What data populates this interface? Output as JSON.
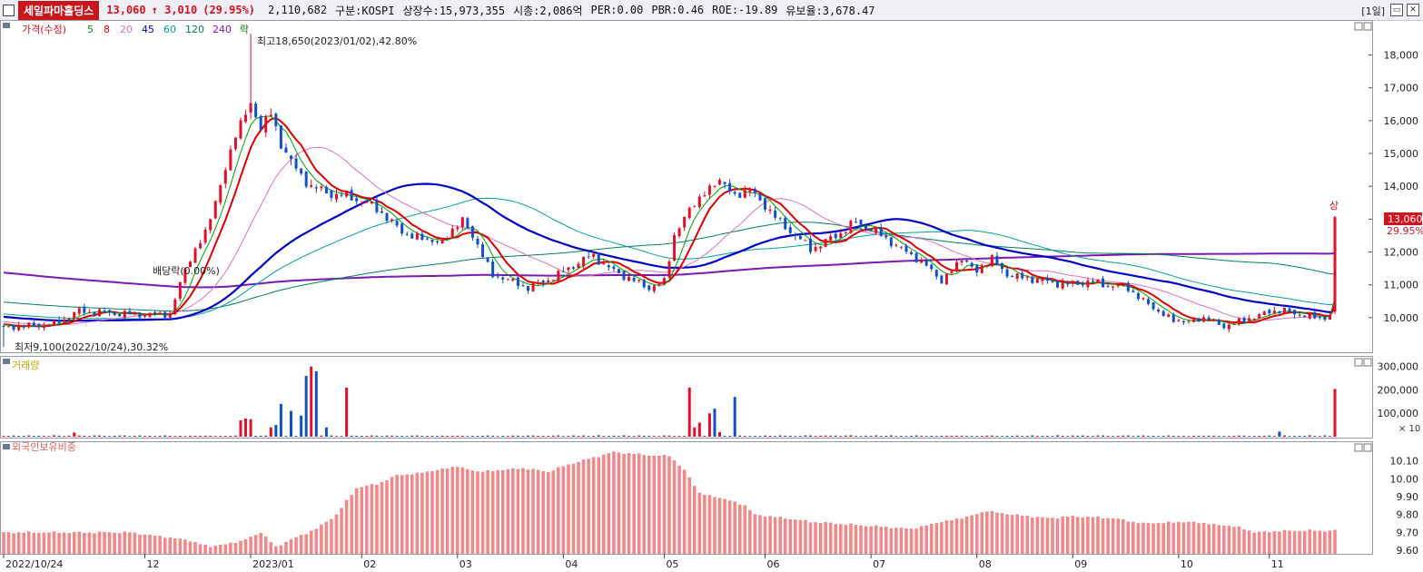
{
  "header": {
    "stock_name": "세일파마홀딩스",
    "price": "13,060",
    "change": "↑ 3,010",
    "change_pct": "(29.95%)",
    "volume": "2,110,682",
    "market": "구분:KOSPI",
    "listed_shares": "상장수:15,973,355",
    "market_cap": "시총:2,086억",
    "per": "PER:0.00",
    "pbr": "PBR:0.46",
    "roe": "ROE:-19.89",
    "float_ratio": "유보율:3,678.47",
    "period": "[1일]",
    "accent_color": "#c8161d"
  },
  "legend": {
    "price": "가격(수정)",
    "ma5": "5",
    "ma8": "8",
    "ma20": "20",
    "ma45": "45",
    "ma60": "60",
    "ma120": "120",
    "ma240": "240",
    "event": "락"
  },
  "annotations": {
    "high": "최고18,650(2023/01/02),42.80%",
    "low": "최저9,100(2022/10/24),30.32%",
    "dividend": "배당락(0.00%)",
    "upper_limit": "상",
    "price_tag": "13,060",
    "pct_tag": "29.95%"
  },
  "volume_panel": {
    "title": "거래량",
    "unit": "× 10"
  },
  "foreign_panel": {
    "title": "외국인보유비중"
  },
  "chart_data": [
    {
      "type": "candlestick",
      "title": "가격(수정)",
      "y_ticks": [
        10000,
        11000,
        12000,
        13000,
        14000,
        15000,
        16000,
        17000,
        18000
      ],
      "y_tick_labels": [
        "10,000",
        "11,000",
        "12,000",
        "13,000",
        "14,000",
        "15,000",
        "16,000",
        "17,000",
        "18,000"
      ],
      "ylim": [
        9000,
        18900
      ],
      "x_ticks": [
        "2022/10/24",
        "12",
        "2023/01",
        "02",
        "03",
        "04",
        "05",
        "06",
        "07",
        "08",
        "09",
        "10",
        "11"
      ],
      "x_tick_days": [
        0,
        28,
        49,
        71,
        90,
        111,
        131,
        151,
        172,
        193,
        212,
        233,
        251
      ],
      "total_days": 265,
      "anchors": [
        [
          0,
          9700
        ],
        [
          10,
          9800
        ],
        [
          15,
          10200
        ],
        [
          25,
          10100
        ],
        [
          33,
          10100
        ],
        [
          36,
          11500
        ],
        [
          40,
          12600
        ],
        [
          43,
          14000
        ],
        [
          46,
          15600
        ],
        [
          49,
          16500
        ],
        [
          51,
          15800
        ],
        [
          53,
          16200
        ],
        [
          55,
          15300
        ],
        [
          58,
          14500
        ],
        [
          61,
          14000
        ],
        [
          64,
          13800
        ],
        [
          68,
          13700
        ],
        [
          72,
          13500
        ],
        [
          75,
          13200
        ],
        [
          79,
          12600
        ],
        [
          83,
          12400
        ],
        [
          87,
          12300
        ],
        [
          91,
          13000
        ],
        [
          94,
          12200
        ],
        [
          97,
          11300
        ],
        [
          101,
          11100
        ],
        [
          104,
          10900
        ],
        [
          107,
          11100
        ],
        [
          110,
          11300
        ],
        [
          113,
          11600
        ],
        [
          117,
          11900
        ],
        [
          120,
          11500
        ],
        [
          124,
          11200
        ],
        [
          128,
          10900
        ],
        [
          131,
          11100
        ],
        [
          133,
          12500
        ],
        [
          136,
          13300
        ],
        [
          139,
          13800
        ],
        [
          142,
          14200
        ],
        [
          145,
          13700
        ],
        [
          148,
          13900
        ],
        [
          151,
          13400
        ],
        [
          154,
          12900
        ],
        [
          157,
          12500
        ],
        [
          160,
          12100
        ],
        [
          163,
          12300
        ],
        [
          166,
          12600
        ],
        [
          169,
          12900
        ],
        [
          172,
          12700
        ],
        [
          175,
          12400
        ],
        [
          179,
          12000
        ],
        [
          183,
          11600
        ],
        [
          186,
          11100
        ],
        [
          190,
          11800
        ],
        [
          193,
          11400
        ],
        [
          196,
          11800
        ],
        [
          199,
          11300
        ],
        [
          203,
          11200
        ],
        [
          207,
          11100
        ],
        [
          211,
          11000
        ],
        [
          215,
          11100
        ],
        [
          219,
          11000
        ],
        [
          223,
          10900
        ],
        [
          226,
          10500
        ],
        [
          229,
          10200
        ],
        [
          232,
          9900
        ],
        [
          236,
          9900
        ],
        [
          239,
          10000
        ],
        [
          242,
          9700
        ],
        [
          245,
          9900
        ],
        [
          248,
          10000
        ],
        [
          251,
          10200
        ],
        [
          254,
          10200
        ],
        [
          257,
          10100
        ],
        [
          260,
          10000
        ],
        [
          263,
          10050
        ],
        [
          264,
          13060
        ]
      ],
      "last_close": 13060,
      "high": 18650,
      "low": 9100,
      "series_colors": {
        "ma5": "#00a000",
        "ma8": "#e00000",
        "ma20": "#e070c0",
        "ma45": "#0000c8",
        "ma60": "#00a0a0",
        "ma120": "#008060",
        "ma240": "#7a1ab0",
        "up": "#e0102a",
        "down": "#1050c8"
      }
    },
    {
      "type": "bar",
      "title": "거래량",
      "y_ticks": [
        100000,
        200000,
        300000
      ],
      "y_tick_labels": [
        "100,000",
        "200,000",
        "300,000"
      ],
      "ylim": [
        0,
        330000
      ],
      "spikes": [
        [
          14,
          18000
        ],
        [
          47,
          70000
        ],
        [
          48,
          78000
        ],
        [
          49,
          75000
        ],
        [
          53,
          40000
        ],
        [
          54,
          50000
        ],
        [
          55,
          140000
        ],
        [
          57,
          110000
        ],
        [
          59,
          90000
        ],
        [
          60,
          260000
        ],
        [
          61,
          300000
        ],
        [
          62,
          280000
        ],
        [
          64,
          40000
        ],
        [
          68,
          210000
        ],
        [
          136,
          210000
        ],
        [
          137,
          40000
        ],
        [
          138,
          60000
        ],
        [
          140,
          100000
        ],
        [
          141,
          120000
        ],
        [
          142,
          20000
        ],
        [
          145,
          170000
        ],
        [
          253,
          22000
        ],
        [
          264,
          204000
        ]
      ],
      "base": 3000
    },
    {
      "type": "bar",
      "title": "외국인보유비중",
      "y_ticks": [
        9.6,
        9.7,
        9.8,
        9.9,
        10.0,
        10.1
      ],
      "y_tick_labels": [
        "9.60",
        "9.70",
        "9.80",
        "9.90",
        "10.00",
        "10.10"
      ],
      "ylim": [
        9.58,
        10.18
      ],
      "anchors": [
        [
          0,
          9.7
        ],
        [
          25,
          9.7
        ],
        [
          36,
          9.66
        ],
        [
          41,
          9.62
        ],
        [
          47,
          9.65
        ],
        [
          51,
          9.7
        ],
        [
          54,
          9.62
        ],
        [
          57,
          9.66
        ],
        [
          62,
          9.72
        ],
        [
          66,
          9.8
        ],
        [
          70,
          9.95
        ],
        [
          74,
          9.97
        ],
        [
          78,
          10.02
        ],
        [
          82,
          10.03
        ],
        [
          86,
          10.05
        ],
        [
          90,
          10.07
        ],
        [
          94,
          10.04
        ],
        [
          99,
          10.05
        ],
        [
          103,
          10.06
        ],
        [
          108,
          10.04
        ],
        [
          112,
          10.08
        ],
        [
          117,
          10.12
        ],
        [
          121,
          10.15
        ],
        [
          125,
          10.14
        ],
        [
          129,
          10.13
        ],
        [
          132,
          10.13
        ],
        [
          135,
          10.05
        ],
        [
          138,
          9.92
        ],
        [
          141,
          9.9
        ],
        [
          144,
          9.88
        ],
        [
          147,
          9.85
        ],
        [
          149,
          9.8
        ],
        [
          155,
          9.78
        ],
        [
          160,
          9.76
        ],
        [
          170,
          9.74
        ],
        [
          180,
          9.72
        ],
        [
          186,
          9.76
        ],
        [
          190,
          9.78
        ],
        [
          195,
          9.82
        ],
        [
          200,
          9.8
        ],
        [
          207,
          9.78
        ],
        [
          212,
          9.79
        ],
        [
          220,
          9.78
        ],
        [
          226,
          9.75
        ],
        [
          235,
          9.76
        ],
        [
          245,
          9.73
        ],
        [
          248,
          9.7
        ],
        [
          255,
          9.71
        ],
        [
          264,
          9.71
        ]
      ]
    }
  ]
}
